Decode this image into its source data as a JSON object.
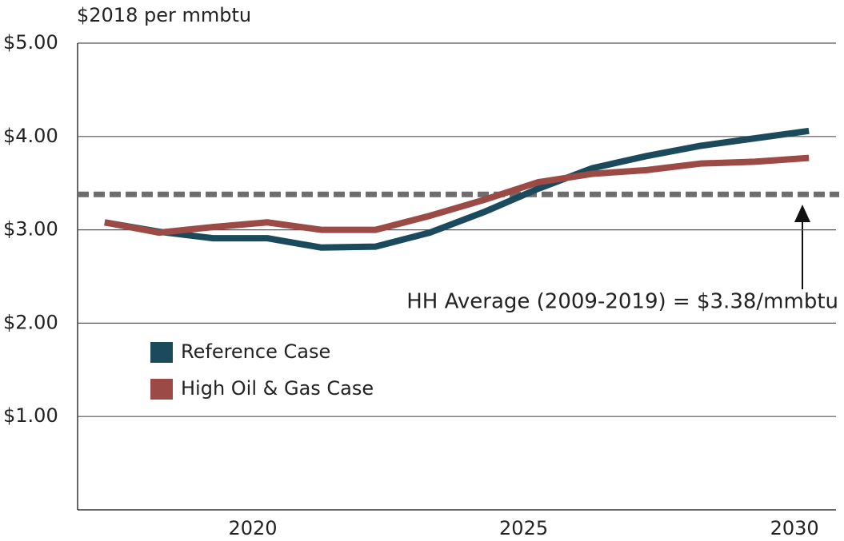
{
  "chart_data": {
    "type": "line",
    "y_axis_label": "$2018 per mmbtu",
    "x": [
      2017,
      2018,
      2019,
      2020,
      2021,
      2022,
      2023,
      2024,
      2025,
      2026,
      2027,
      2028,
      2029,
      2030
    ],
    "series": [
      {
        "name": "Reference Case",
        "color": "#1b4a5c",
        "values": [
          3.08,
          2.98,
          2.91,
          2.91,
          2.81,
          2.82,
          2.97,
          3.19,
          3.44,
          3.66,
          3.79,
          3.9,
          3.98,
          4.06
        ]
      },
      {
        "name": "High Oil & Gas Case",
        "color": "#9b4a45",
        "values": [
          3.08,
          2.97,
          3.03,
          3.08,
          3.0,
          3.0,
          3.15,
          3.32,
          3.51,
          3.6,
          3.64,
          3.71,
          3.73,
          3.77
        ]
      }
    ],
    "reference_line": {
      "value": 3.38,
      "label": "HH Average (2009-2019) = $3.38/mmbtu",
      "color": "#6d6d6d"
    },
    "xlim": [
      2016.5,
      2030.5
    ],
    "xticks": [
      2020,
      2025,
      2030
    ],
    "ylim": [
      0,
      5
    ],
    "yticks": [
      {
        "value": 1,
        "label": "$1.00"
      },
      {
        "value": 2,
        "label": "$2.00"
      },
      {
        "value": 3,
        "label": "$3.00"
      },
      {
        "value": 4,
        "label": "$4.00"
      },
      {
        "value": 5,
        "label": "$5.00"
      }
    ],
    "grid": true,
    "legend": "lower left"
  }
}
